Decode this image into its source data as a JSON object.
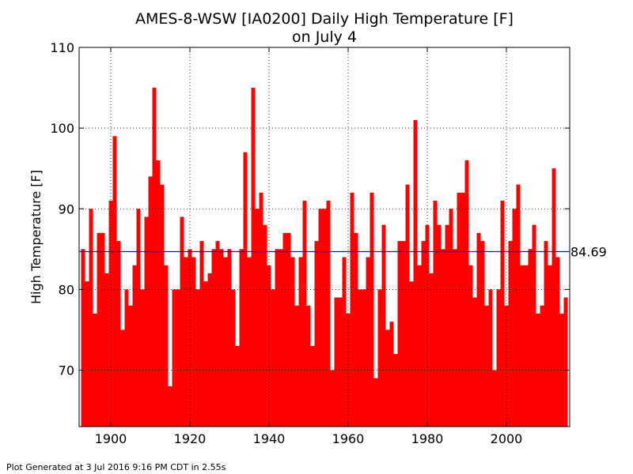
{
  "chart_data": {
    "type": "bar",
    "title_line1": "AMES-8-WSW [IA0200] Daily High Temperature [F]",
    "title_line2": "on July 4",
    "xlabel": "",
    "ylabel": "High Temperature [F]",
    "xlim": [
      1892,
      2016
    ],
    "ylim": [
      63,
      110
    ],
    "x_ticks": [
      1900,
      1920,
      1940,
      1960,
      1980,
      2000
    ],
    "y_ticks": [
      70,
      80,
      90,
      100,
      110
    ],
    "grid": true,
    "bar_color": "#ff0000",
    "average": 84.69,
    "average_label": "84.69",
    "average_color": "#0000ff",
    "x": [
      1893,
      1894,
      1895,
      1896,
      1897,
      1898,
      1899,
      1900,
      1901,
      1902,
      1903,
      1904,
      1905,
      1906,
      1907,
      1908,
      1909,
      1910,
      1911,
      1912,
      1913,
      1914,
      1915,
      1916,
      1917,
      1918,
      1919,
      1920,
      1921,
      1922,
      1923,
      1924,
      1925,
      1926,
      1927,
      1928,
      1929,
      1930,
      1931,
      1932,
      1933,
      1934,
      1935,
      1936,
      1937,
      1938,
      1939,
      1940,
      1941,
      1942,
      1943,
      1944,
      1945,
      1946,
      1947,
      1948,
      1949,
      1950,
      1951,
      1952,
      1953,
      1954,
      1955,
      1956,
      1957,
      1958,
      1959,
      1960,
      1961,
      1962,
      1963,
      1964,
      1965,
      1966,
      1967,
      1968,
      1969,
      1970,
      1971,
      1972,
      1973,
      1974,
      1975,
      1976,
      1977,
      1978,
      1979,
      1980,
      1981,
      1982,
      1983,
      1984,
      1985,
      1986,
      1987,
      1988,
      1989,
      1990,
      1991,
      1992,
      1993,
      1994,
      1995,
      1996,
      1997,
      1998,
      1999,
      2000,
      2001,
      2002,
      2003,
      2004,
      2005,
      2006,
      2007,
      2008,
      2009,
      2010,
      2011,
      2012,
      2013,
      2014,
      2015
    ],
    "values": [
      85,
      81,
      90,
      77,
      87,
      87,
      82,
      91,
      99,
      86,
      75,
      80,
      78,
      83,
      90,
      80,
      89,
      94,
      105,
      96,
      93,
      83,
      68,
      80,
      80,
      89,
      84,
      85,
      84,
      80,
      86,
      81,
      82,
      85,
      86,
      85,
      84,
      85,
      80,
      73,
      85,
      97,
      84,
      105,
      90,
      92,
      88,
      83,
      80,
      85,
      85,
      87,
      87,
      84,
      78,
      84,
      91,
      78,
      73,
      86,
      90,
      90,
      91,
      70,
      79,
      79,
      84,
      77,
      92,
      87,
      80,
      80,
      84,
      92,
      69,
      80,
      88,
      75,
      76,
      72,
      86,
      86,
      93,
      81,
      101,
      83,
      86,
      88,
      82,
      91,
      88,
      85,
      88,
      90,
      85,
      92,
      92,
      96,
      83,
      79,
      87,
      86,
      78,
      80,
      70,
      80,
      91,
      78,
      86,
      90,
      93,
      83,
      83,
      85,
      88,
      77,
      78,
      86,
      83,
      95,
      84,
      77,
      79
    ]
  },
  "footer_text": "Plot Generated at 3 Jul 2016 9:16 PM CDT in 2.55s"
}
